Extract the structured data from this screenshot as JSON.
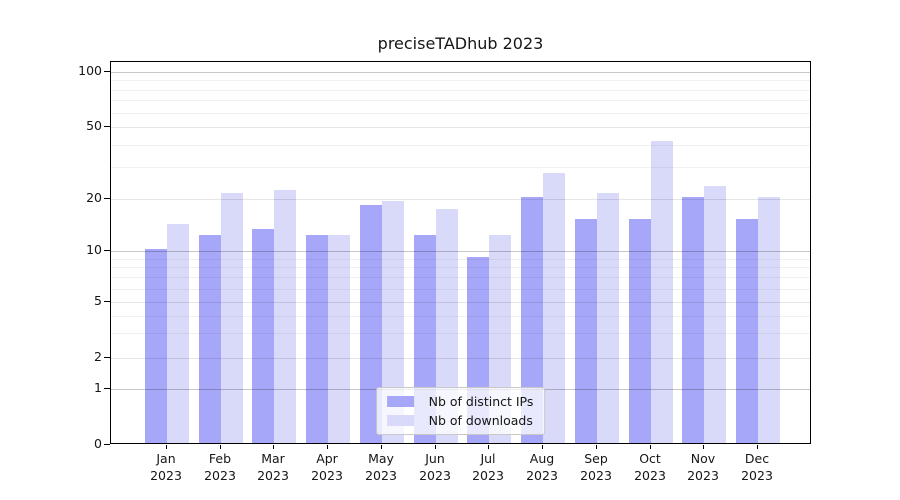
{
  "title": "preciseTADhub 2023",
  "colors": {
    "distinct_ips": "#a7a7fa",
    "downloads": "#d9d9fa",
    "spine": "#000000"
  },
  "y_axis": {
    "major_tick_labels": [
      "0",
      "1",
      "2",
      "5",
      "10",
      "20",
      "50",
      "100"
    ],
    "major_tick_values": [
      0,
      1,
      2,
      5,
      10,
      20,
      50,
      100
    ],
    "power_gridlines": [
      1,
      10,
      100
    ],
    "mid_gridlines": [
      2,
      5,
      20,
      50
    ],
    "minor_gridlines": [
      3,
      4,
      6,
      7,
      8,
      9,
      30,
      40,
      60,
      70,
      80,
      90
    ]
  },
  "x_axis": {
    "months": [
      "Jan",
      "Feb",
      "Mar",
      "Apr",
      "May",
      "Jun",
      "Jul",
      "Aug",
      "Sep",
      "Oct",
      "Nov",
      "Dec"
    ],
    "year": "2023"
  },
  "legend": {
    "items": [
      {
        "label": "Nb of distinct IPs",
        "series": "distinct_ips"
      },
      {
        "label": "Nb of downloads",
        "series": "downloads"
      }
    ]
  },
  "chart_data": {
    "type": "bar",
    "title": "preciseTADhub 2023",
    "categories": [
      "Jan 2023",
      "Feb 2023",
      "Mar 2023",
      "Apr 2023",
      "May 2023",
      "Jun 2023",
      "Jul 2023",
      "Aug 2023",
      "Sep 2023",
      "Oct 2023",
      "Nov 2023",
      "Dec 2023"
    ],
    "series": [
      {
        "name": "Nb of distinct IPs",
        "color": "#a7a7fa",
        "values": [
          10,
          12,
          13,
          12,
          18,
          12,
          9,
          20,
          15,
          15,
          20,
          15
        ]
      },
      {
        "name": "Nb of downloads",
        "color": "#d9d9fa",
        "values": [
          14,
          21,
          22,
          12,
          19,
          17,
          12,
          27,
          21,
          41,
          23,
          20
        ]
      }
    ],
    "xlabel": "",
    "ylabel": "",
    "yscale": "asinh-like (linear 0-1, log-ish above)",
    "y_ticks": [
      0,
      1,
      2,
      5,
      10,
      20,
      50,
      100
    ],
    "ylim": [
      0,
      113
    ],
    "grid": true,
    "grid_above_bars": true,
    "legend_position": "lower center"
  }
}
